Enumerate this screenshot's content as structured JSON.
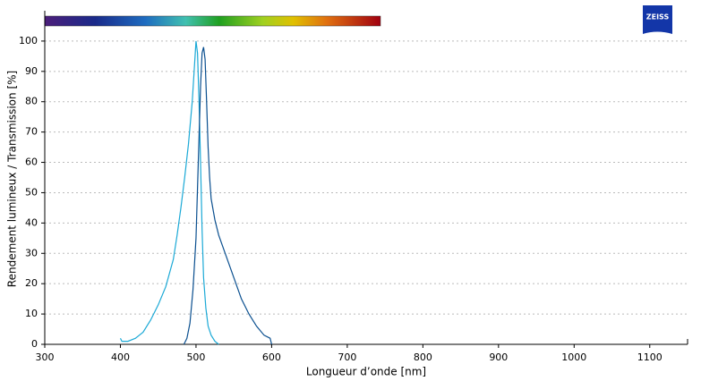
{
  "chart_data": {
    "type": "line",
    "logo": "ZEISS",
    "x_label": "Longueur d’onde [nm]",
    "y_label": "Rendement lumineux / Transmission [%]",
    "xlim": [
      300,
      1150
    ],
    "xticks": [
      300,
      400,
      500,
      600,
      700,
      800,
      900,
      1000,
      1100
    ],
    "ylim": [
      0,
      110
    ],
    "yticks": [
      0,
      10,
      20,
      30,
      40,
      50,
      60,
      70,
      80,
      90,
      100
    ],
    "grid": true,
    "series": [
      {
        "color": "#1ba9d6",
        "x": [
          400,
          402,
          410,
          420,
          425,
          430,
          440,
          450,
          460,
          470,
          475,
          480,
          485,
          490,
          495,
          498,
          500,
          502,
          504,
          506,
          508,
          510,
          513,
          516,
          520,
          525,
          530
        ],
        "values": [
          2,
          1,
          1,
          2,
          3,
          4,
          8,
          13,
          19,
          28,
          36,
          45,
          55,
          66,
          80,
          92,
          100,
          96,
          80,
          60,
          38,
          22,
          12,
          6,
          3,
          1,
          0
        ]
      },
      {
        "color": "#0a4f8f",
        "x": [
          484,
          488,
          492,
          496,
          500,
          503,
          506,
          508,
          510,
          512,
          514,
          516,
          518,
          520,
          525,
          530,
          540,
          550,
          560,
          570,
          580,
          590,
          598,
          600
        ],
        "values": [
          0,
          2,
          7,
          18,
          35,
          60,
          85,
          96,
          98,
          94,
          80,
          65,
          55,
          48,
          41,
          36,
          29,
          22,
          15,
          10,
          6,
          3,
          2,
          0
        ]
      }
    ]
  }
}
